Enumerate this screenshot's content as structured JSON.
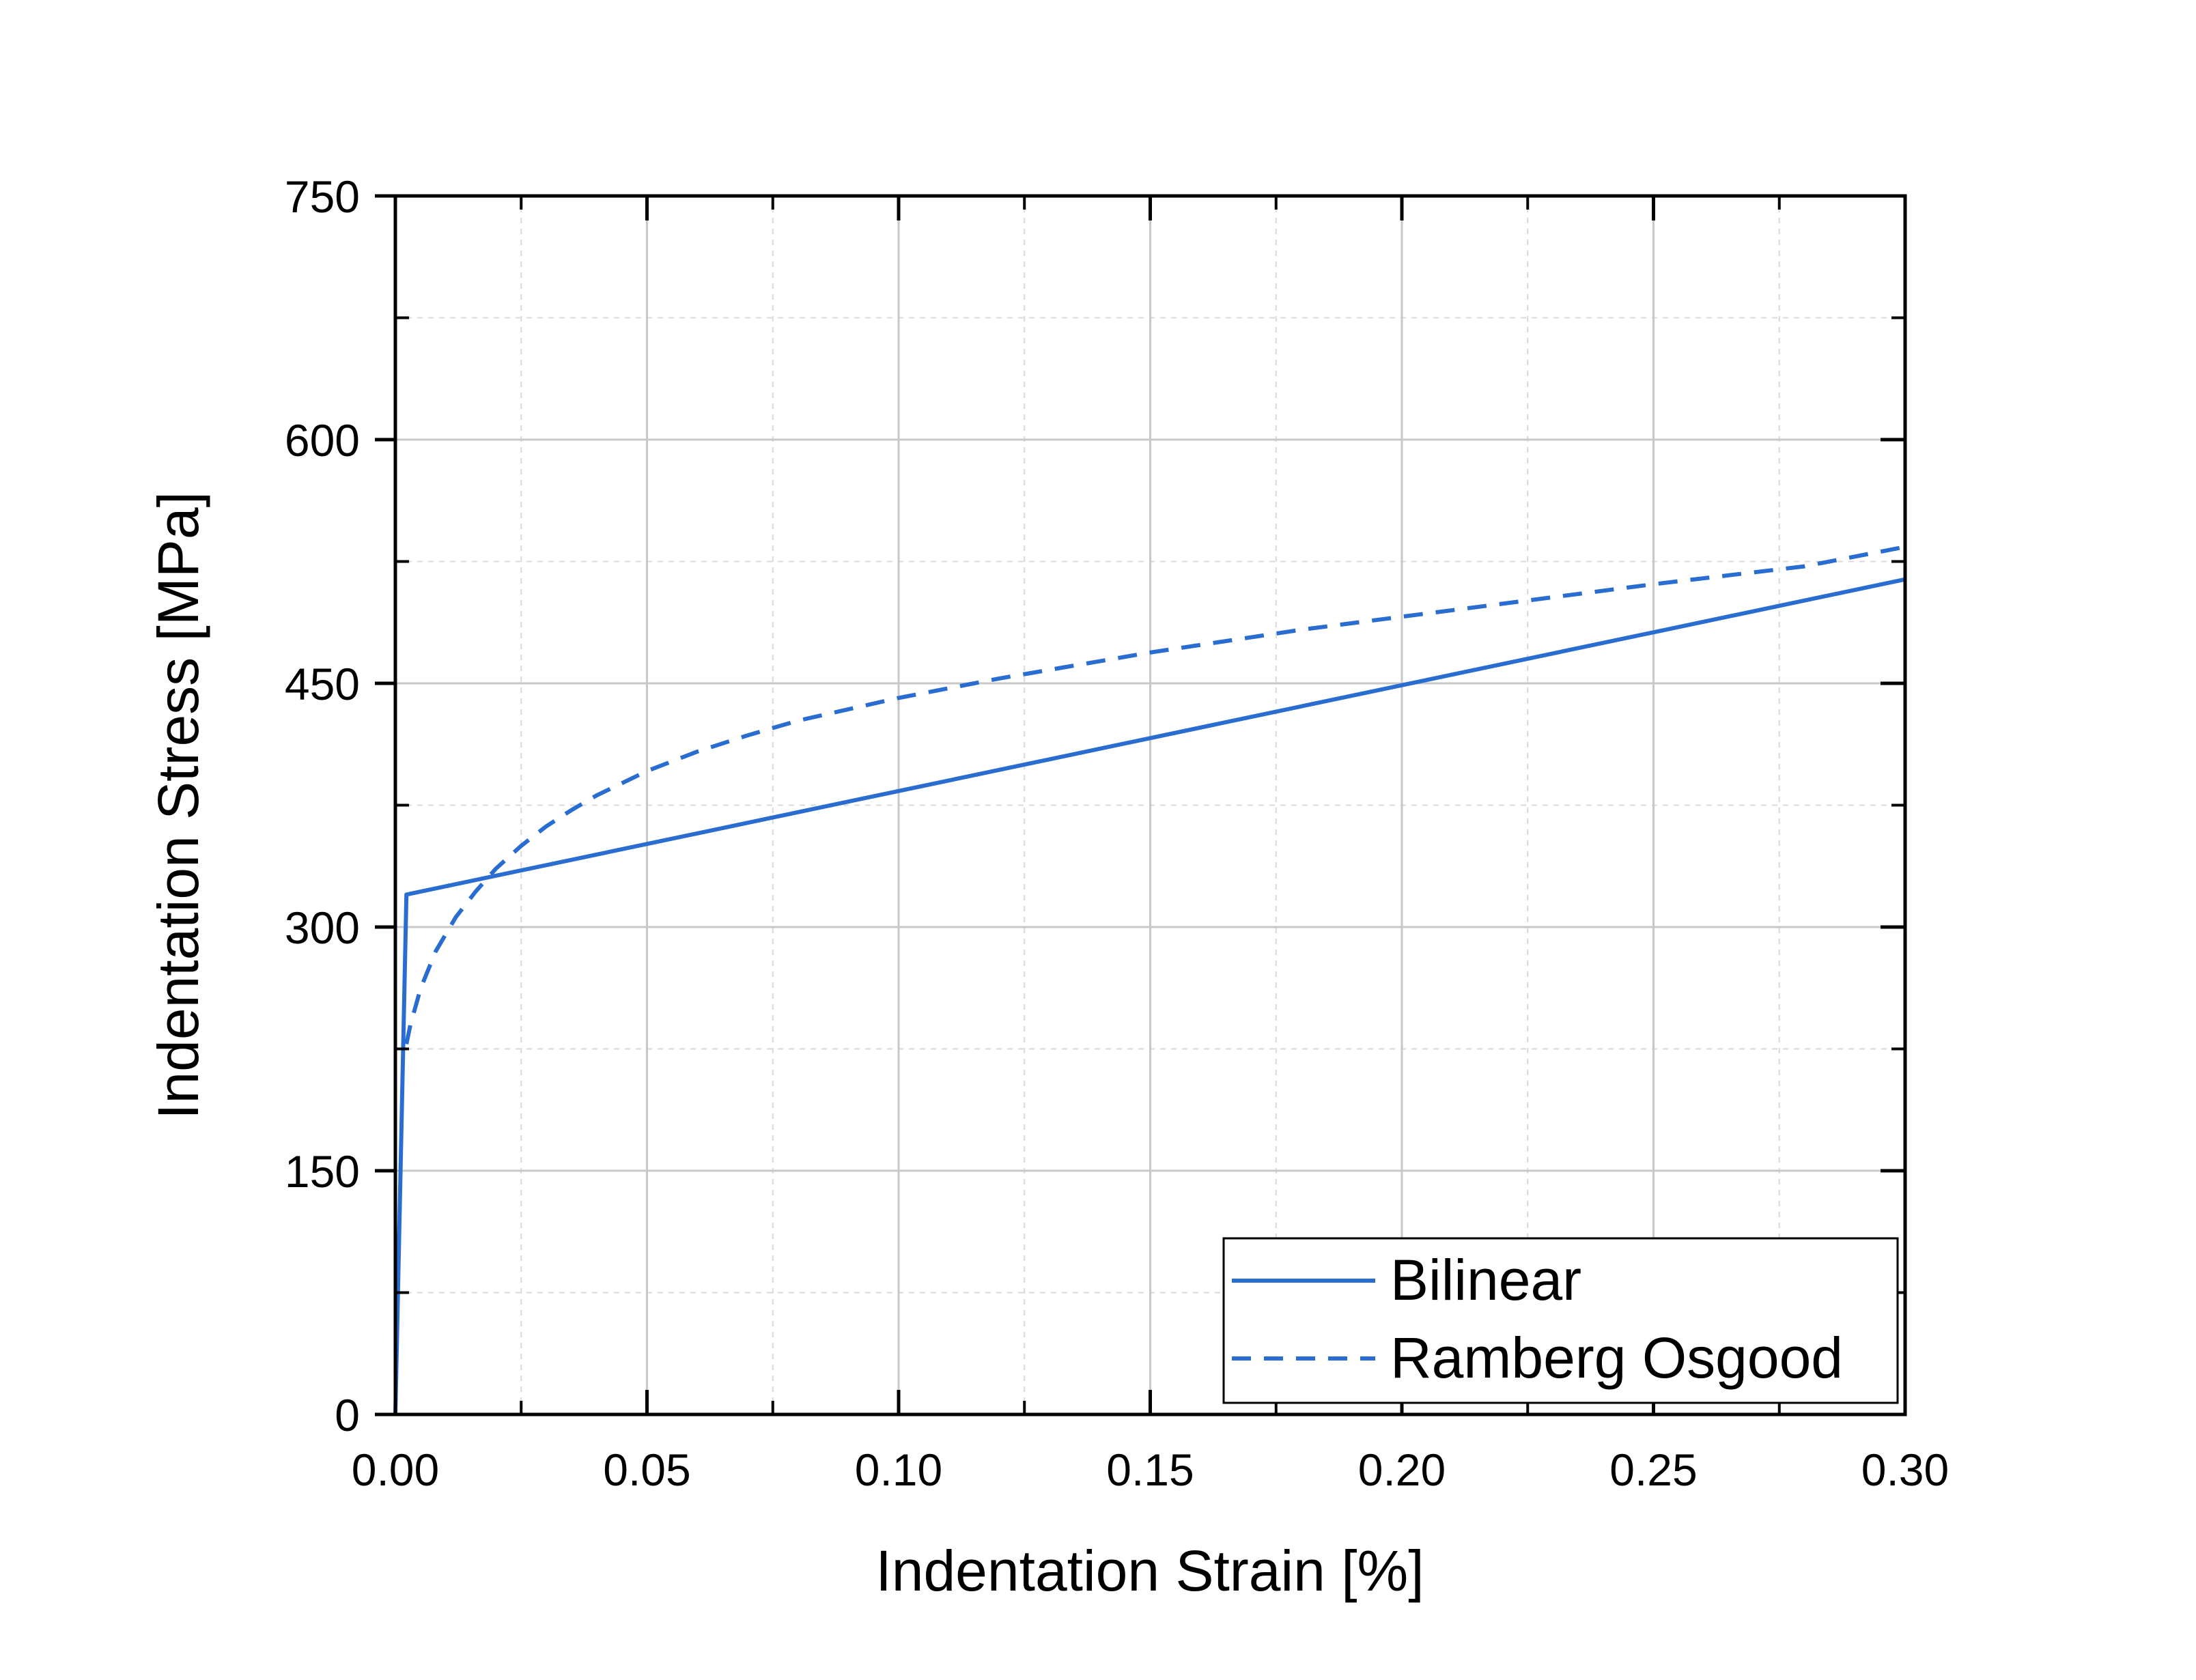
{
  "chart_data": {
    "type": "line",
    "title": "",
    "xlabel": "Indentation Strain [%]",
    "ylabel": "Indentation Stress [MPa]",
    "xlim": [
      0,
      0.3
    ],
    "ylim": [
      0,
      750
    ],
    "xticks": [
      0.0,
      0.05,
      0.1,
      0.15,
      0.2,
      0.25,
      0.3
    ],
    "xtick_labels": [
      "0.00",
      "0.05",
      "0.10",
      "0.15",
      "0.20",
      "0.25",
      "0.30"
    ],
    "yticks": [
      0,
      150,
      300,
      450,
      600,
      750
    ],
    "ytick_labels": [
      "0",
      "150",
      "300",
      "450",
      "600",
      "750"
    ],
    "grid": true,
    "minor_grid": true,
    "legend_position": "bottom-right",
    "line_color": "#2a6dd1",
    "series": [
      {
        "name": "Bilinear",
        "style": "solid",
        "x": [
          0.0,
          0.0022,
          0.3
        ],
        "y": [
          0,
          320,
          514
        ]
      },
      {
        "name": "Ramberg Osgood",
        "style": "dashed",
        "x": [
          0.0022,
          0.003,
          0.005,
          0.008,
          0.012,
          0.016,
          0.02,
          0.025,
          0.03,
          0.035,
          0.04,
          0.05,
          0.06,
          0.07,
          0.08,
          0.1,
          0.12,
          0.15,
          0.18,
          0.2,
          0.22,
          0.25,
          0.28,
          0.3
        ],
        "y": [
          228,
          240,
          262,
          285,
          306,
          322,
          336,
          350,
          362,
          372,
          381,
          396,
          408,
          418,
          427,
          441,
          453,
          469,
          483,
          491,
          499,
          511,
          522,
          534
        ]
      }
    ]
  }
}
